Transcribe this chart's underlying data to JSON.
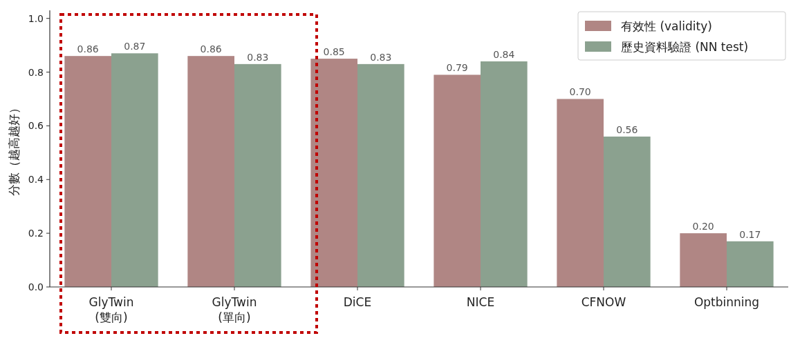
{
  "chart_data": {
    "type": "bar",
    "ylabel": "分數（越高越好）",
    "categories": [
      "GlyTwin\n(雙向)",
      "GlyTwin\n(單向)",
      "DiCE",
      "NICE",
      "CFNOW",
      "Optbinning"
    ],
    "series": [
      {
        "name": "有效性 (validity)",
        "color": "#b08684",
        "values": [
          0.86,
          0.86,
          0.85,
          0.79,
          0.7,
          0.2
        ],
        "value_labels": [
          "0.86",
          "0.86",
          "0.85",
          "0.79",
          "0.70",
          "0.20"
        ]
      },
      {
        "name": "歷史資料驗證 (NN test)",
        "color": "#8ba18f",
        "values": [
          0.87,
          0.83,
          0.83,
          0.84,
          0.56,
          0.17
        ],
        "value_labels": [
          "0.87",
          "0.83",
          "0.83",
          "0.84",
          "0.56",
          "0.17"
        ]
      }
    ],
    "ylim": [
      0,
      1.03
    ],
    "yticks": [
      {
        "value": 0,
        "label": "0.0"
      },
      {
        "value": 0.2,
        "label": "0.2"
      },
      {
        "value": 0.4,
        "label": "0.4"
      },
      {
        "value": 0.6,
        "label": "0.6"
      },
      {
        "value": 0.8,
        "label": "0.8"
      },
      {
        "value": 1,
        "label": "1.0"
      }
    ],
    "grid": false,
    "legend": "top right"
  }
}
